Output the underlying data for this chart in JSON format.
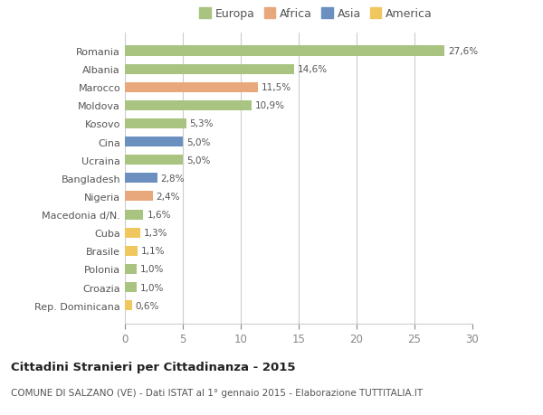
{
  "categories": [
    "Rep. Dominicana",
    "Croazia",
    "Polonia",
    "Brasile",
    "Cuba",
    "Macedonia d/N.",
    "Nigeria",
    "Bangladesh",
    "Ucraina",
    "Cina",
    "Kosovo",
    "Moldova",
    "Marocco",
    "Albania",
    "Romania"
  ],
  "values": [
    0.6,
    1.0,
    1.0,
    1.1,
    1.3,
    1.6,
    2.4,
    2.8,
    5.0,
    5.0,
    5.3,
    10.9,
    11.5,
    14.6,
    27.6
  ],
  "labels": [
    "0,6%",
    "1,0%",
    "1,0%",
    "1,1%",
    "1,3%",
    "1,6%",
    "2,4%",
    "2,8%",
    "5,0%",
    "5,0%",
    "5,3%",
    "10,9%",
    "11,5%",
    "14,6%",
    "27,6%"
  ],
  "colors": [
    "#f0c75e",
    "#a8c480",
    "#a8c480",
    "#f0c75e",
    "#f0c75e",
    "#a8c480",
    "#e8a87c",
    "#6b8fbf",
    "#a8c480",
    "#6b8fbf",
    "#a8c480",
    "#a8c480",
    "#e8a87c",
    "#a8c480",
    "#a8c480"
  ],
  "legend_labels": [
    "Europa",
    "Africa",
    "Asia",
    "America"
  ],
  "legend_colors": [
    "#a8c480",
    "#e8a87c",
    "#6b8fbf",
    "#f0c75e"
  ],
  "title": "Cittadini Stranieri per Cittadinanza - 2015",
  "subtitle": "COMUNE DI SALZANO (VE) - Dati ISTAT al 1° gennaio 2015 - Elaborazione TUTTITALIA.IT",
  "xlim": [
    0,
    30
  ],
  "xticks": [
    0,
    5,
    10,
    15,
    20,
    25,
    30
  ],
  "bar_height": 0.55,
  "background_color": "#ffffff",
  "grid_color": "#cccccc",
  "label_color": "#555555",
  "tick_color": "#888888"
}
